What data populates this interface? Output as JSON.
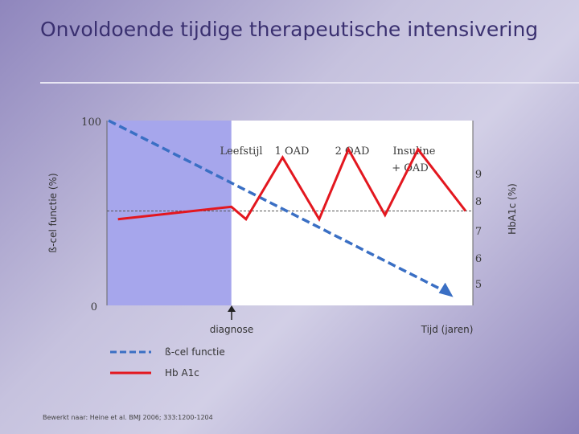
{
  "slide": {
    "title": "Onvoldoende tijdige therapeutische intensivering",
    "source": "Bewerkt naar: Heine et al. BMJ 2006; 333:1200-1204"
  },
  "colors": {
    "beta_line": "#3a6fc4",
    "hba1c_line": "#e3171f",
    "phase_shading": "#a6a6ec",
    "plot_bg": "#ffffff"
  },
  "chart_data": {
    "type": "line",
    "title": "",
    "x_label": "Tijd (jaren)",
    "left_axis": {
      "label": "ß-cel functie (%)",
      "ticks": [
        "100",
        "0"
      ],
      "range": [
        0,
        100
      ]
    },
    "right_axis": {
      "label": "HbA1c (%)",
      "ticks": [
        "9",
        "8",
        "7",
        "6",
        "5"
      ],
      "range": [
        4.7,
        9.2
      ]
    },
    "threshold": 7,
    "phases": [
      "Leefstijl",
      "1 OAD",
      "2 OAD",
      "Insuline\n+ OAD"
    ],
    "phase_lines": [
      "Insuline",
      "+ OAD"
    ],
    "annotation": "diagnose",
    "series": [
      {
        "name": "ß-cel functie",
        "axis": "left",
        "style": "dashed",
        "points": [
          [
            0,
            100
          ],
          [
            1,
            0
          ]
        ]
      },
      {
        "name": "HbA1c",
        "axis": "right",
        "style": "solid",
        "points": [
          [
            0.03,
            6.8
          ],
          [
            0.34,
            7.1
          ],
          [
            0.38,
            6.8
          ],
          [
            0.48,
            8.3
          ],
          [
            0.58,
            6.8
          ],
          [
            0.66,
            8.5
          ],
          [
            0.76,
            6.9
          ],
          [
            0.85,
            8.5
          ],
          [
            0.98,
            7.0
          ]
        ]
      }
    ]
  },
  "legend": [
    {
      "label": "ß-cel functie",
      "style": "dashed"
    },
    {
      "label": "Hb A1c",
      "style": "solid"
    }
  ]
}
